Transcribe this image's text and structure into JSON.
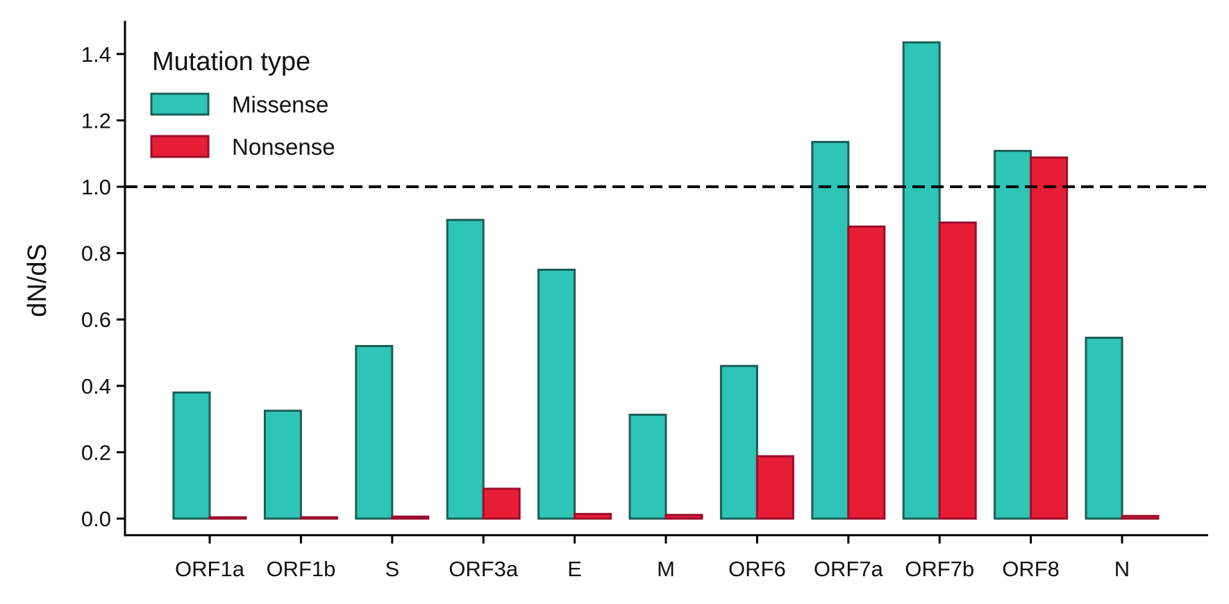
{
  "chart_data": {
    "type": "bar",
    "categories": [
      "ORF1a",
      "ORF1b",
      "S",
      "ORF3a",
      "E",
      "M",
      "ORF6",
      "ORF7a",
      "ORF7b",
      "ORF8",
      "N"
    ],
    "series": [
      {
        "name": "Missense",
        "color": "#2ec4b6",
        "edge_color": "#1b5e55",
        "values": [
          0.38,
          0.325,
          0.52,
          0.9,
          0.75,
          0.313,
          0.46,
          1.135,
          1.435,
          1.108,
          0.545
        ]
      },
      {
        "name": "Nonsense",
        "color": "#e71d36",
        "edge_color": "#9b0d2c",
        "values": [
          0.004,
          0.004,
          0.006,
          0.09,
          0.014,
          0.011,
          0.188,
          0.88,
          0.892,
          1.088,
          0.008
        ]
      }
    ],
    "title": "",
    "xlabel": "",
    "ylabel": "dN/dS",
    "ylim": [
      -0.05,
      1.5
    ],
    "yticks": [
      "0.0",
      "0.2",
      "0.4",
      "0.6",
      "0.8",
      "1.0",
      "1.2",
      "1.4"
    ],
    "reference_line": {
      "y": 1.0,
      "style": "dashed",
      "color": "#000000"
    },
    "legend": {
      "title": "Mutation type",
      "placement": "top-left"
    },
    "grid": false
  }
}
